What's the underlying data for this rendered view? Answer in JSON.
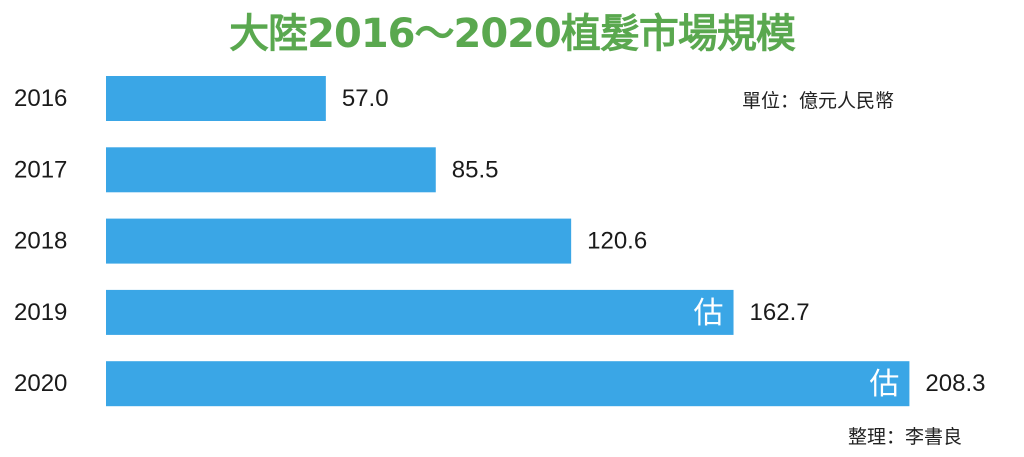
{
  "title": "大陸2016～2020植髮市場規模",
  "unit_label": "單位：億元人民幣",
  "credit": "整理：李書良",
  "colors": {
    "bar": "#3aa6e6",
    "title": "#5aa84f"
  },
  "chart_data": {
    "type": "bar",
    "orientation": "horizontal",
    "categories": [
      "2016",
      "2017",
      "2018",
      "2019",
      "2020"
    ],
    "values": [
      57.0,
      85.5,
      120.6,
      162.7,
      208.3
    ],
    "value_labels": [
      "57.0",
      "85.5",
      "120.6",
      "162.7",
      "208.3"
    ],
    "bar_notes": [
      "",
      "",
      "",
      "估",
      "估"
    ],
    "title": "大陸2016～2020植髮市場規模",
    "xlabel": "",
    "ylabel": "",
    "grid": false,
    "legend": "none"
  }
}
